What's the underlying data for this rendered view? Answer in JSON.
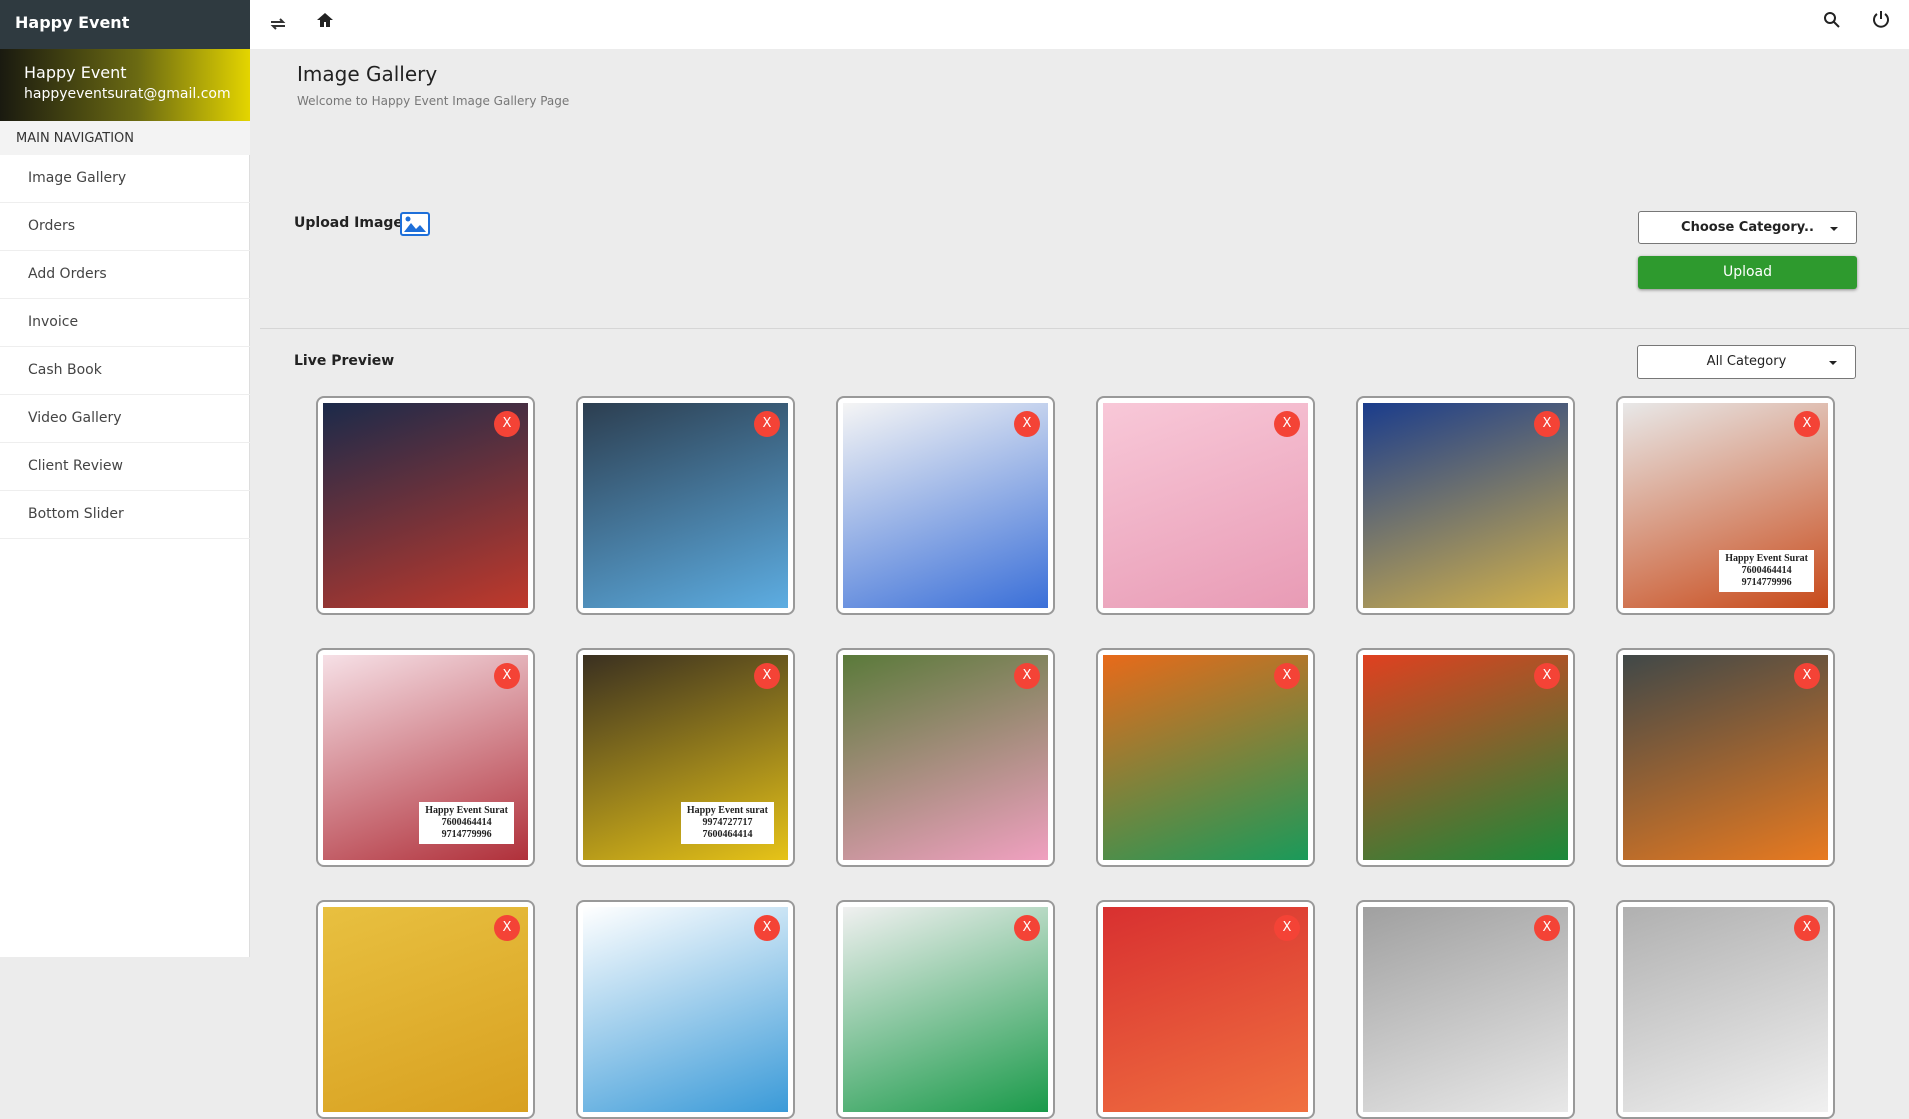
{
  "header": {
    "title": "Happy Event"
  },
  "profile": {
    "name": "Happy Event",
    "email": "happyeventsurat@gmail.com"
  },
  "nav": {
    "heading": "MAIN NAVIGATION",
    "items": [
      "Image Gallery",
      "Orders",
      "Add Orders",
      "Invoice",
      "Cash Book",
      "Video Gallery",
      "Client Review",
      "Bottom Slider"
    ]
  },
  "page": {
    "title": "Image Gallery",
    "subtitle": "Welcome to Happy Event Image Gallery Page"
  },
  "upload": {
    "label": "Upload Image :",
    "category": "Choose Category..",
    "button": "Upload"
  },
  "preview": {
    "title": "Live Preview",
    "filter": "All Category"
  },
  "gallery": {
    "images": [
      {
        "delete": "X"
      },
      {
        "delete": "X"
      },
      {
        "delete": "X"
      },
      {
        "delete": "X"
      },
      {
        "delete": "X"
      },
      {
        "delete": "X",
        "caption": [
          "Happy Event Surat",
          "7600464414",
          "9714779996"
        ]
      },
      {
        "delete": "X",
        "caption": [
          "Happy Event Surat",
          "7600464414",
          "9714779996"
        ]
      },
      {
        "delete": "X",
        "caption": [
          "Happy Event surat",
          "9974727717",
          "7600464414"
        ]
      },
      {
        "delete": "X"
      },
      {
        "delete": "X"
      },
      {
        "delete": "X"
      },
      {
        "delete": "X"
      },
      {
        "delete": "X"
      },
      {
        "delete": "X"
      },
      {
        "delete": "X"
      },
      {
        "delete": "X"
      },
      {
        "delete": "X"
      },
      {
        "delete": "X"
      }
    ]
  }
}
